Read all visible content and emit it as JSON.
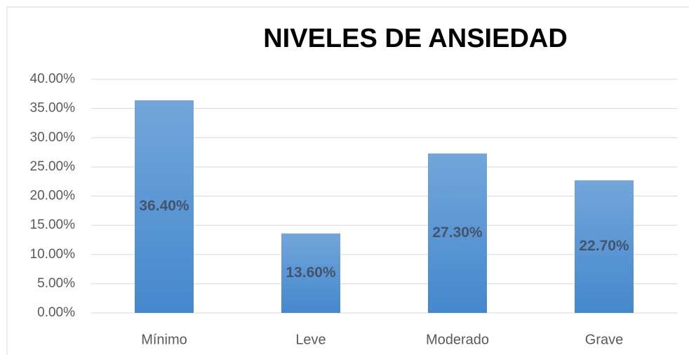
{
  "chart_data": {
    "type": "bar",
    "title": "NIVELES DE ANSIEDAD",
    "categories": [
      "Mínimo",
      "Leve",
      "Moderado",
      "Grave"
    ],
    "values": [
      36.4,
      13.6,
      27.3,
      22.7
    ],
    "value_labels": [
      "36.40%",
      "13.60%",
      "27.30%",
      "22.70%"
    ],
    "color": "#5b9bd5",
    "ylim": [
      0,
      40
    ],
    "yticks": [
      {
        "value": 0,
        "label": "0.00%"
      },
      {
        "value": 5,
        "label": "5.00%"
      },
      {
        "value": 10,
        "label": "10.00%"
      },
      {
        "value": 15,
        "label": "15.00%"
      },
      {
        "value": 20,
        "label": "20.00%"
      },
      {
        "value": 25,
        "label": "25.00%"
      },
      {
        "value": 30,
        "label": "30.00%"
      },
      {
        "value": 35,
        "label": "35.00%"
      },
      {
        "value": 40,
        "label": "40.00%"
      }
    ],
    "grid": true
  }
}
